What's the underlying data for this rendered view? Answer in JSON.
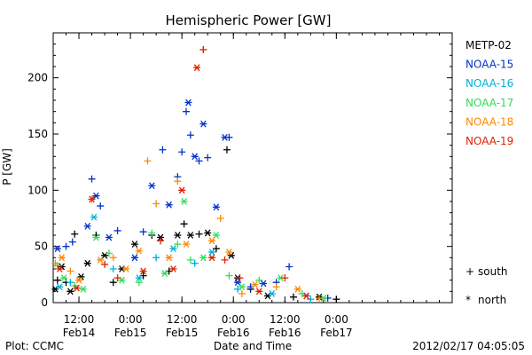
{
  "chart_data": {
    "type": "scatter",
    "title": "Hemispheric Power [GW]",
    "xlabel": "Date and Time",
    "ylabel": "P [GW]",
    "ylim": [
      0,
      240
    ],
    "xlim": [
      "2012-02-13T06:00",
      "2012-02-17T03:00"
    ],
    "yticks": [
      0,
      50,
      100,
      150,
      200
    ],
    "xticks": [
      {
        "at": "2012-02-13T12:00",
        "time": "12:00",
        "date": "Feb14"
      },
      {
        "at": "2012-02-14T00:00",
        "time": "0:00",
        "date": "Feb15"
      },
      {
        "at": "2012-02-14T12:00",
        "time": "12:00",
        "date": "Feb15"
      },
      {
        "at": "2012-02-15T00:00",
        "time": "0:00",
        "date": "Feb16"
      },
      {
        "at": "2012-02-15T12:00",
        "time": "12:00",
        "date": "Feb16"
      },
      {
        "at": "2012-02-16T00:00",
        "time": "0:00",
        "date": "Feb17"
      }
    ],
    "markers": {
      "south": "+",
      "north": "*"
    },
    "grid": false,
    "legend": "right",
    "series": [
      {
        "name": "METP-02",
        "color": "#000000",
        "points": [
          {
            "x": "2012-02-13T06:30",
            "y": 12,
            "h": "north"
          },
          {
            "x": "2012-02-13T07:00",
            "y": 20,
            "h": "south"
          },
          {
            "x": "2012-02-13T08:00",
            "y": 32,
            "h": "north"
          },
          {
            "x": "2012-02-13T09:00",
            "y": 18,
            "h": "south"
          },
          {
            "x": "2012-02-13T10:00",
            "y": 10,
            "h": "north"
          },
          {
            "x": "2012-02-13T11:00",
            "y": 61,
            "h": "south"
          },
          {
            "x": "2012-02-13T12:30",
            "y": 23,
            "h": "north"
          },
          {
            "x": "2012-02-13T14:00",
            "y": 35,
            "h": "north"
          },
          {
            "x": "2012-02-13T16:00",
            "y": 60,
            "h": "south"
          },
          {
            "x": "2012-02-13T18:00",
            "y": 42,
            "h": "north"
          },
          {
            "x": "2012-02-13T20:00",
            "y": 18,
            "h": "south"
          },
          {
            "x": "2012-02-13T22:00",
            "y": 30,
            "h": "north"
          },
          {
            "x": "2012-02-14T01:00",
            "y": 52,
            "h": "north"
          },
          {
            "x": "2012-02-14T03:00",
            "y": 24,
            "h": "south"
          },
          {
            "x": "2012-02-14T05:00",
            "y": 60,
            "h": "south"
          },
          {
            "x": "2012-02-14T07:00",
            "y": 58,
            "h": "north"
          },
          {
            "x": "2012-02-14T09:00",
            "y": 28,
            "h": "south"
          },
          {
            "x": "2012-02-14T11:00",
            "y": 60,
            "h": "north"
          },
          {
            "x": "2012-02-14T12:30",
            "y": 70,
            "h": "south"
          },
          {
            "x": "2012-02-14T14:00",
            "y": 60,
            "h": "north"
          },
          {
            "x": "2012-02-14T16:00",
            "y": 61,
            "h": "south"
          },
          {
            "x": "2012-02-14T18:00",
            "y": 62,
            "h": "north"
          },
          {
            "x": "2012-02-14T20:00",
            "y": 48,
            "h": "south"
          },
          {
            "x": "2012-02-14T22:30",
            "y": 136,
            "h": "south"
          },
          {
            "x": "2012-02-14T23:30",
            "y": 42,
            "h": "north"
          },
          {
            "x": "2012-02-15T01:00",
            "y": 22,
            "h": "north"
          },
          {
            "x": "2012-02-15T04:00",
            "y": 12,
            "h": "south"
          },
          {
            "x": "2012-02-15T08:00",
            "y": 6,
            "h": "north"
          },
          {
            "x": "2012-02-15T14:00",
            "y": 5,
            "h": "south"
          },
          {
            "x": "2012-02-15T20:00",
            "y": 5,
            "h": "north"
          },
          {
            "x": "2012-02-16T00:00",
            "y": 3,
            "h": "south"
          }
        ]
      },
      {
        "name": "NOAA-15",
        "color": "#0033cc",
        "points": [
          {
            "x": "2012-02-13T07:00",
            "y": 48,
            "h": "north"
          },
          {
            "x": "2012-02-13T09:00",
            "y": 50,
            "h": "south"
          },
          {
            "x": "2012-02-13T10:30",
            "y": 54,
            "h": "south"
          },
          {
            "x": "2012-02-13T14:00",
            "y": 68,
            "h": "north"
          },
          {
            "x": "2012-02-13T15:00",
            "y": 110,
            "h": "south"
          },
          {
            "x": "2012-02-13T16:00",
            "y": 95,
            "h": "north"
          },
          {
            "x": "2012-02-13T17:00",
            "y": 86,
            "h": "south"
          },
          {
            "x": "2012-02-13T19:00",
            "y": 58,
            "h": "north"
          },
          {
            "x": "2012-02-13T21:00",
            "y": 64,
            "h": "south"
          },
          {
            "x": "2012-02-14T01:00",
            "y": 40,
            "h": "north"
          },
          {
            "x": "2012-02-14T03:00",
            "y": 63,
            "h": "south"
          },
          {
            "x": "2012-02-14T05:00",
            "y": 104,
            "h": "north"
          },
          {
            "x": "2012-02-14T07:30",
            "y": 136,
            "h": "south"
          },
          {
            "x": "2012-02-14T09:00",
            "y": 87,
            "h": "north"
          },
          {
            "x": "2012-02-14T11:00",
            "y": 112,
            "h": "south"
          },
          {
            "x": "2012-02-14T12:00",
            "y": 134,
            "h": "south"
          },
          {
            "x": "2012-02-14T13:00",
            "y": 170,
            "h": "south"
          },
          {
            "x": "2012-02-14T13:30",
            "y": 178,
            "h": "north"
          },
          {
            "x": "2012-02-14T14:00",
            "y": 149,
            "h": "south"
          },
          {
            "x": "2012-02-14T15:00",
            "y": 130,
            "h": "north"
          },
          {
            "x": "2012-02-14T16:00",
            "y": 126,
            "h": "south"
          },
          {
            "x": "2012-02-14T17:00",
            "y": 159,
            "h": "north"
          },
          {
            "x": "2012-02-14T18:00",
            "y": 129,
            "h": "south"
          },
          {
            "x": "2012-02-14T20:00",
            "y": 85,
            "h": "north"
          },
          {
            "x": "2012-02-14T22:00",
            "y": 147,
            "h": "north"
          },
          {
            "x": "2012-02-14T23:00",
            "y": 147,
            "h": "south"
          },
          {
            "x": "2012-02-15T01:00",
            "y": 18,
            "h": "north"
          },
          {
            "x": "2012-02-15T04:00",
            "y": 14,
            "h": "south"
          },
          {
            "x": "2012-02-15T07:00",
            "y": 17,
            "h": "north"
          },
          {
            "x": "2012-02-15T10:00",
            "y": 18,
            "h": "south"
          },
          {
            "x": "2012-02-15T13:00",
            "y": 32,
            "h": "south"
          },
          {
            "x": "2012-02-15T17:00",
            "y": 6,
            "h": "north"
          },
          {
            "x": "2012-02-15T22:00",
            "y": 4,
            "h": "south"
          }
        ]
      },
      {
        "name": "NOAA-16",
        "color": "#00b0d8",
        "points": [
          {
            "x": "2012-02-13T07:30",
            "y": 14,
            "h": "north"
          },
          {
            "x": "2012-02-13T10:00",
            "y": 18,
            "h": "south"
          },
          {
            "x": "2012-02-13T15:30",
            "y": 76,
            "h": "north"
          },
          {
            "x": "2012-02-13T20:00",
            "y": 30,
            "h": "south"
          },
          {
            "x": "2012-02-14T02:00",
            "y": 22,
            "h": "north"
          },
          {
            "x": "2012-02-14T06:00",
            "y": 40,
            "h": "south"
          },
          {
            "x": "2012-02-14T10:00",
            "y": 48,
            "h": "north"
          },
          {
            "x": "2012-02-14T15:00",
            "y": 35,
            "h": "south"
          },
          {
            "x": "2012-02-14T19:00",
            "y": 45,
            "h": "north"
          },
          {
            "x": "2012-02-15T01:00",
            "y": 12,
            "h": "south"
          },
          {
            "x": "2012-02-15T09:00",
            "y": 8,
            "h": "north"
          },
          {
            "x": "2012-02-15T18:00",
            "y": 3,
            "h": "south"
          }
        ]
      },
      {
        "name": "NOAA-17",
        "color": "#33dd55",
        "points": [
          {
            "x": "2012-02-13T07:00",
            "y": 33,
            "h": "south"
          },
          {
            "x": "2012-02-13T08:30",
            "y": 22,
            "h": "north"
          },
          {
            "x": "2012-02-13T11:00",
            "y": 15,
            "h": "south"
          },
          {
            "x": "2012-02-13T13:00",
            "y": 12,
            "h": "north"
          },
          {
            "x": "2012-02-13T16:00",
            "y": 58,
            "h": "north"
          },
          {
            "x": "2012-02-13T19:00",
            "y": 44,
            "h": "south"
          },
          {
            "x": "2012-02-13T22:00",
            "y": 20,
            "h": "north"
          },
          {
            "x": "2012-02-14T02:00",
            "y": 18,
            "h": "south"
          },
          {
            "x": "2012-02-14T05:00",
            "y": 62,
            "h": "south"
          },
          {
            "x": "2012-02-14T08:00",
            "y": 26,
            "h": "north"
          },
          {
            "x": "2012-02-14T11:00",
            "y": 52,
            "h": "south"
          },
          {
            "x": "2012-02-14T12:30",
            "y": 90,
            "h": "north"
          },
          {
            "x": "2012-02-14T14:00",
            "y": 38,
            "h": "south"
          },
          {
            "x": "2012-02-14T17:00",
            "y": 40,
            "h": "north"
          },
          {
            "x": "2012-02-14T20:00",
            "y": 60,
            "h": "north"
          },
          {
            "x": "2012-02-14T23:00",
            "y": 24,
            "h": "south"
          },
          {
            "x": "2012-02-15T02:00",
            "y": 14,
            "h": "north"
          },
          {
            "x": "2012-02-15T06:00",
            "y": 20,
            "h": "south"
          },
          {
            "x": "2012-02-15T11:00",
            "y": 22,
            "h": "north"
          },
          {
            "x": "2012-02-15T16:00",
            "y": 8,
            "h": "south"
          },
          {
            "x": "2012-02-15T21:00",
            "y": 4,
            "h": "north"
          }
        ]
      },
      {
        "name": "NOAA-18",
        "color": "#ff8800",
        "points": [
          {
            "x": "2012-02-13T06:30",
            "y": 35,
            "h": "south"
          },
          {
            "x": "2012-02-13T08:00",
            "y": 40,
            "h": "north"
          },
          {
            "x": "2012-02-13T10:00",
            "y": 28,
            "h": "south"
          },
          {
            "x": "2012-02-13T12:00",
            "y": 20,
            "h": "north"
          },
          {
            "x": "2012-02-13T15:00",
            "y": 92,
            "h": "south"
          },
          {
            "x": "2012-02-13T17:00",
            "y": 38,
            "h": "north"
          },
          {
            "x": "2012-02-13T20:00",
            "y": 40,
            "h": "south"
          },
          {
            "x": "2012-02-13T23:00",
            "y": 30,
            "h": "north"
          },
          {
            "x": "2012-02-14T02:00",
            "y": 46,
            "h": "north"
          },
          {
            "x": "2012-02-14T04:00",
            "y": 126,
            "h": "south"
          },
          {
            "x": "2012-02-14T06:00",
            "y": 88,
            "h": "south"
          },
          {
            "x": "2012-02-14T09:00",
            "y": 40,
            "h": "north"
          },
          {
            "x": "2012-02-14T11:00",
            "y": 108,
            "h": "south"
          },
          {
            "x": "2012-02-14T13:00",
            "y": 52,
            "h": "north"
          },
          {
            "x": "2012-02-14T15:30",
            "y": 209,
            "h": "north"
          },
          {
            "x": "2012-02-14T17:00",
            "y": 225,
            "h": "south"
          },
          {
            "x": "2012-02-14T19:00",
            "y": 55,
            "h": "north"
          },
          {
            "x": "2012-02-14T21:00",
            "y": 75,
            "h": "south"
          },
          {
            "x": "2012-02-14T23:00",
            "y": 45,
            "h": "north"
          },
          {
            "x": "2012-02-15T02:00",
            "y": 8,
            "h": "south"
          },
          {
            "x": "2012-02-15T05:00",
            "y": 16,
            "h": "north"
          },
          {
            "x": "2012-02-15T10:00",
            "y": 14,
            "h": "south"
          },
          {
            "x": "2012-02-15T15:00",
            "y": 12,
            "h": "north"
          },
          {
            "x": "2012-02-15T20:00",
            "y": 4,
            "h": "south"
          }
        ]
      },
      {
        "name": "NOAA-19",
        "color": "#dd2200",
        "points": [
          {
            "x": "2012-02-13T07:30",
            "y": 30,
            "h": "north"
          },
          {
            "x": "2012-02-13T11:30",
            "y": 13,
            "h": "north"
          },
          {
            "x": "2012-02-13T15:00",
            "y": 92,
            "h": "north"
          },
          {
            "x": "2012-02-13T18:00",
            "y": 34,
            "h": "south"
          },
          {
            "x": "2012-02-13T21:00",
            "y": 22,
            "h": "south"
          },
          {
            "x": "2012-02-14T03:00",
            "y": 28,
            "h": "north"
          },
          {
            "x": "2012-02-14T07:00",
            "y": 55,
            "h": "south"
          },
          {
            "x": "2012-02-14T10:00",
            "y": 30,
            "h": "north"
          },
          {
            "x": "2012-02-14T12:00",
            "y": 100,
            "h": "north"
          },
          {
            "x": "2012-02-14T15:30",
            "y": 209,
            "h": "north"
          },
          {
            "x": "2012-02-14T17:00",
            "y": 225,
            "h": "south"
          },
          {
            "x": "2012-02-14T19:00",
            "y": 40,
            "h": "north"
          },
          {
            "x": "2012-02-14T22:00",
            "y": 38,
            "h": "south"
          },
          {
            "x": "2012-02-15T01:30",
            "y": 22,
            "h": "south"
          },
          {
            "x": "2012-02-15T06:00",
            "y": 10,
            "h": "north"
          },
          {
            "x": "2012-02-15T12:00",
            "y": 22,
            "h": "south"
          },
          {
            "x": "2012-02-15T17:00",
            "y": 6,
            "h": "north"
          }
        ]
      }
    ]
  },
  "legend": {
    "items": [
      {
        "name": "METP-02",
        "color": "#000000"
      },
      {
        "name": "NOAA-15",
        "color": "#0033cc"
      },
      {
        "name": "NOAA-16",
        "color": "#00b0d8"
      },
      {
        "name": "NOAA-17",
        "color": "#33dd55"
      },
      {
        "name": "NOAA-18",
        "color": "#ff8800"
      },
      {
        "name": "NOAA-19",
        "color": "#dd2200"
      }
    ],
    "south": "south",
    "north": "north",
    "south_symbol": "+",
    "north_symbol": "*"
  },
  "footer": {
    "plot_credit": "Plot: CCMC",
    "timestamp": "2012/02/17 04:05:05"
  }
}
